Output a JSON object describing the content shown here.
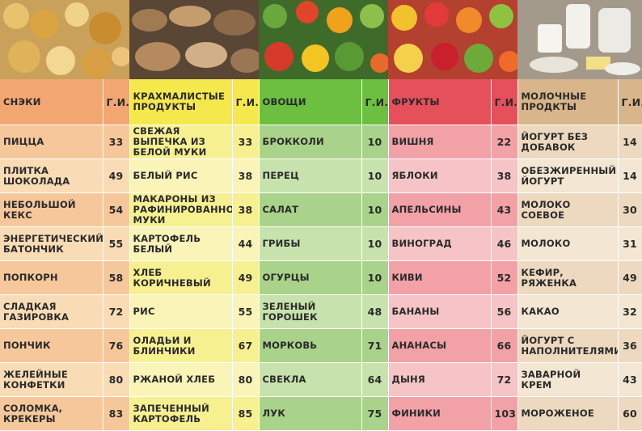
{
  "photos": [
    {
      "name": "snacks-photo",
      "color": "#d9a441"
    },
    {
      "name": "bread-photo",
      "color": "#8a6b4b"
    },
    {
      "name": "vegetables-photo",
      "color": "#5d8c3a"
    },
    {
      "name": "fruits-photo",
      "color": "#d6603a"
    },
    {
      "name": "dairy-photo",
      "color": "#d9d6cf"
    }
  ],
  "headers": [
    {
      "label": "Снэки",
      "gi": "Г.И."
    },
    {
      "label": "Крахмалистые продукты",
      "gi": "Г.И."
    },
    {
      "label": "Овощи",
      "gi": "Г.И."
    },
    {
      "label": "Фрукты",
      "gi": "Г.И."
    },
    {
      "label": "Молочные продкты",
      "gi": "Г.И."
    }
  ],
  "rows": [
    [
      [
        "Пицца",
        "33"
      ],
      [
        "Свежая выпечка из белой муки",
        "33"
      ],
      [
        "Брокколи",
        "10"
      ],
      [
        "Вишня",
        "22"
      ],
      [
        "Йогурт без добавок",
        "14"
      ]
    ],
    [
      [
        "Плитка шоколада",
        "49"
      ],
      [
        "Белый рис",
        "38"
      ],
      [
        "Перец",
        "10"
      ],
      [
        "Яблоки",
        "38"
      ],
      [
        "Обезжиренный йогурт",
        "14"
      ]
    ],
    [
      [
        "Небольшой кекс",
        "54"
      ],
      [
        "Макароны из рафинированной муки",
        "38"
      ],
      [
        "Салат",
        "10"
      ],
      [
        "Апельсины",
        "43"
      ],
      [
        "Молоко соевое",
        "30"
      ]
    ],
    [
      [
        "Энергетический батончик",
        "55"
      ],
      [
        "Картофель белый",
        "44"
      ],
      [
        "Грибы",
        "10"
      ],
      [
        "Виноград",
        "46"
      ],
      [
        "Молоко",
        "31"
      ]
    ],
    [
      [
        "Попкорн",
        "58"
      ],
      [
        "Хлеб коричневый",
        "49"
      ],
      [
        "Огурцы",
        "10"
      ],
      [
        "Киви",
        "52"
      ],
      [
        "Кефир, ряженка",
        "49"
      ]
    ],
    [
      [
        "Сладкая газировка",
        "72"
      ],
      [
        "Рис",
        "55"
      ],
      [
        "Зеленый горошек",
        "48"
      ],
      [
        "Бананы",
        "56"
      ],
      [
        "Какао",
        "32"
      ]
    ],
    [
      [
        "Пончик",
        "76"
      ],
      [
        "Оладьи и блинчики",
        "67"
      ],
      [
        "Морковь",
        "71"
      ],
      [
        "Ананасы",
        "66"
      ],
      [
        "Йогурт с наполнителями",
        "36"
      ]
    ],
    [
      [
        "Желейные конфетки",
        "80"
      ],
      [
        "Ржаной хлеб",
        "80"
      ],
      [
        "Свекла",
        "64"
      ],
      [
        "Дыня",
        "72"
      ],
      [
        "Заварной крем",
        "43"
      ]
    ],
    [
      [
        "Соломка, крекеры",
        "83"
      ],
      [
        "Запеченный картофель",
        "85"
      ],
      [
        "Лук",
        "75"
      ],
      [
        "Финики",
        "103"
      ],
      [
        "Мороженое",
        "60"
      ]
    ]
  ]
}
